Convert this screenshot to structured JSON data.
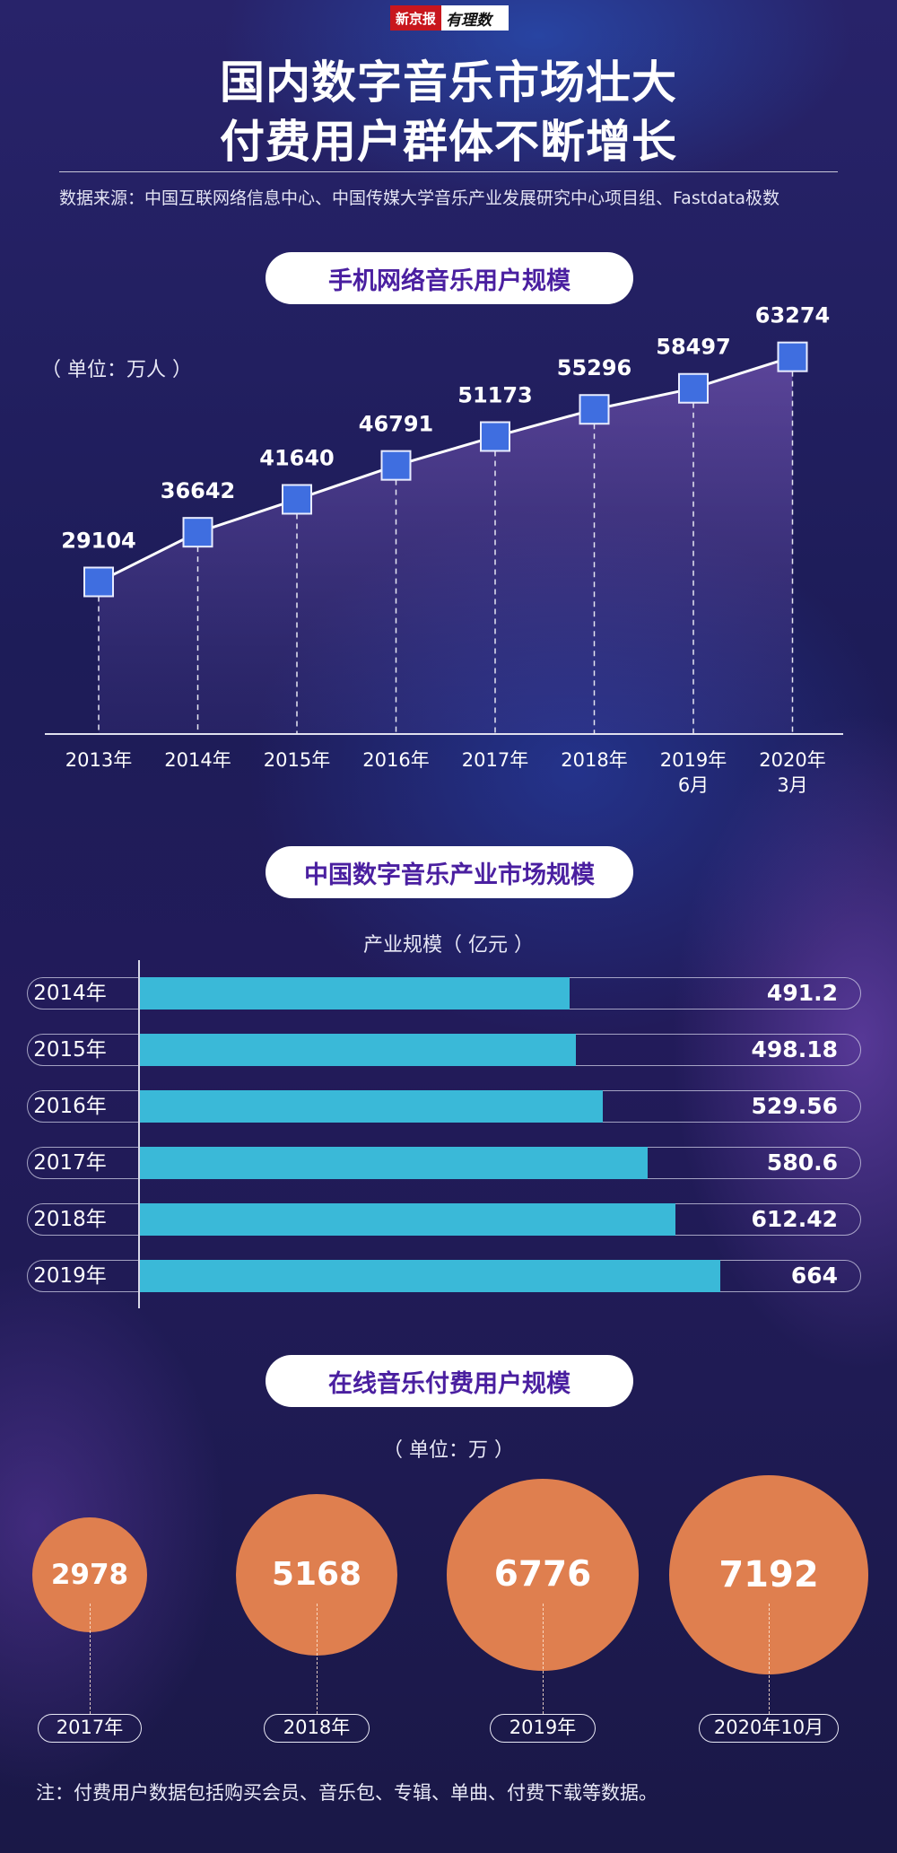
{
  "logo": {
    "part1": "新京报",
    "part2": "有理数"
  },
  "title": {
    "line1": "国内数字音乐市场壮大",
    "line2": "付费用户群体不断增长"
  },
  "source": "数据来源：中国互联网络信息中心、中国传媒大学音乐产业发展研究中心项目组、Fastdata极数",
  "colors": {
    "accent": "#4a1fa0",
    "line_marker": "#3f6ee0",
    "bar": "#3ab9d8",
    "bubble": "#df7f4f"
  },
  "note": "注：付费用户数据包括购买会员、音乐包、专辑、单曲、付费下载等数据。",
  "chart_data": [
    {
      "type": "line",
      "title": "手机网络音乐用户规模",
      "unit": "（ 单位：万人 ）",
      "x": [
        [
          "2013年"
        ],
        [
          "2014年"
        ],
        [
          "2015年"
        ],
        [
          "2016年"
        ],
        [
          "2017年"
        ],
        [
          "2018年"
        ],
        [
          "2019年",
          "6月"
        ],
        [
          "2020年",
          "3月"
        ]
      ],
      "values": [
        29104,
        36642,
        41640,
        46791,
        51173,
        55296,
        58497,
        63274
      ],
      "ylim": [
        18000,
        65000
      ],
      "grid": false
    },
    {
      "type": "bar",
      "orientation": "horizontal",
      "title": "中国数字音乐产业市场规模",
      "subtitle": "产业规模（ 亿元 ）",
      "categories": [
        "2014年",
        "2015年",
        "2016年",
        "2017年",
        "2018年",
        "2019年"
      ],
      "values": [
        491.2,
        498.18,
        529.56,
        580.6,
        612.42,
        664
      ],
      "labels": [
        "491.2",
        "498.18",
        "529.56",
        "580.6",
        "612.42",
        "664"
      ],
      "xlim": [
        0,
        800
      ]
    },
    {
      "type": "bubble",
      "title": "在线音乐付费用户规模",
      "unit": "（ 单位：万 ）",
      "categories": [
        "2017年",
        "2018年",
        "2019年",
        "2020年10月"
      ],
      "values": [
        2978,
        5168,
        6776,
        7192
      ]
    }
  ]
}
